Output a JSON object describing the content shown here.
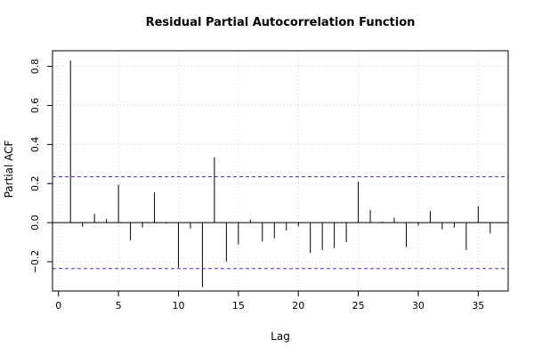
{
  "chart_data": {
    "type": "bar",
    "title": "Residual Partial Autocorrelation Function",
    "xlabel": "Lag",
    "ylabel": "Partial ACF",
    "xlim": [
      -0.5,
      37.5
    ],
    "ylim": [
      -0.35,
      0.88
    ],
    "xticks": [
      0,
      5,
      10,
      15,
      20,
      25,
      30,
      35
    ],
    "yticks": [
      -0.2,
      0.0,
      0.2,
      0.4,
      0.6,
      0.8
    ],
    "ytick_labels": [
      "−0.2",
      "0.0",
      "0.2",
      "0.4",
      "0.6",
      "0.8"
    ],
    "confidence_bound": 0.235,
    "grid": true,
    "lags": [
      1,
      2,
      3,
      4,
      5,
      6,
      7,
      8,
      9,
      10,
      11,
      12,
      13,
      14,
      15,
      16,
      17,
      18,
      19,
      20,
      21,
      22,
      23,
      24,
      25,
      26,
      27,
      28,
      29,
      30,
      31,
      32,
      33,
      34,
      35,
      36
    ],
    "values": [
      0.83,
      -0.02,
      0.045,
      0.02,
      0.195,
      -0.09,
      -0.025,
      0.155,
      -0.005,
      -0.23,
      -0.03,
      -0.33,
      0.335,
      -0.2,
      -0.11,
      0.015,
      -0.095,
      -0.08,
      -0.04,
      -0.02,
      -0.155,
      -0.14,
      -0.13,
      -0.1,
      0.21,
      0.065,
      0.005,
      0.025,
      -0.125,
      -0.015,
      0.06,
      -0.035,
      -0.025,
      -0.14,
      0.085,
      -0.055
    ]
  }
}
